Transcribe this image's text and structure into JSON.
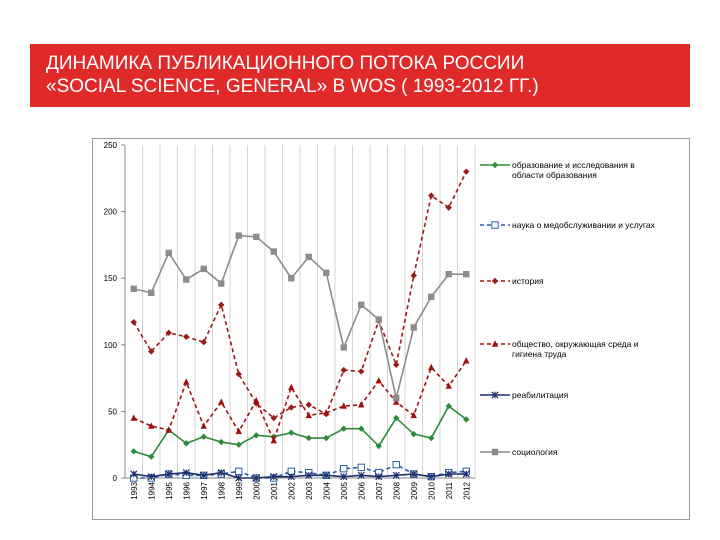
{
  "slide": {
    "title": [
      "ДИНАМИКА ПУБЛИКАЦИОННОГО ПОТОКА РОССИИ",
      "«SOCIAL SCIENCE, GENERAL» В WOS  ( 1993-2012 ГГ.)"
    ]
  },
  "chart_data": {
    "type": "line",
    "categories": [
      "1993",
      "1994",
      "1995",
      "1996",
      "1997",
      "1998",
      "1999",
      "2000",
      "2001",
      "2002",
      "2003",
      "2004",
      "2005",
      "2006",
      "2007",
      "2008",
      "2009",
      "2010",
      "2011",
      "2012"
    ],
    "ylim": [
      0,
      250
    ],
    "yticks": [
      0,
      50,
      100,
      150,
      200,
      250
    ],
    "grid": "vertical",
    "series": [
      {
        "name": "образование и исследования в области образования",
        "color": "#2e8b3a",
        "marker": "diamond",
        "dash": false,
        "values": [
          20,
          16,
          36,
          26,
          31,
          27,
          25,
          32,
          31,
          34,
          30,
          30,
          37,
          37,
          24,
          45,
          33,
          30,
          54,
          44
        ]
      },
      {
        "name": "наука о медобслуживании и услугах",
        "color": "#2a5ea8",
        "marker": "open-square",
        "dash": true,
        "values": [
          0,
          0,
          3,
          2,
          2,
          3,
          5,
          0,
          0,
          5,
          4,
          2,
          7,
          8,
          4,
          10,
          3,
          1,
          4,
          5
        ]
      },
      {
        "name": "история",
        "color": "#9b1b1b",
        "marker": "diamond",
        "dash": true,
        "values": [
          117,
          95,
          109,
          106,
          102,
          130,
          78,
          56,
          45,
          53,
          55,
          48,
          81,
          80,
          118,
          85,
          152,
          212,
          203,
          230
        ]
      },
      {
        "name": "общество, окружающая среда и гигиена труда",
        "color": "#a01010",
        "marker": "triangle",
        "dash": true,
        "values": [
          45,
          39,
          36,
          72,
          39,
          57,
          35,
          58,
          28,
          68,
          47,
          49,
          54,
          55,
          73,
          57,
          47,
          83,
          69,
          88
        ]
      },
      {
        "name": "реабилитация",
        "color": "#1f2f6b",
        "marker": "cross",
        "dash": false,
        "values": [
          3,
          1,
          3,
          4,
          2,
          4,
          0,
          0,
          1,
          1,
          2,
          2,
          1,
          2,
          1,
          2,
          3,
          1,
          3,
          3
        ]
      },
      {
        "name": "социология",
        "color": "#8c8c8c",
        "marker": "square",
        "dash": false,
        "values": [
          142,
          139,
          169,
          149,
          157,
          146,
          182,
          181,
          170,
          150,
          166,
          154,
          98,
          130,
          119,
          60,
          113,
          136,
          153,
          153
        ]
      }
    ]
  }
}
